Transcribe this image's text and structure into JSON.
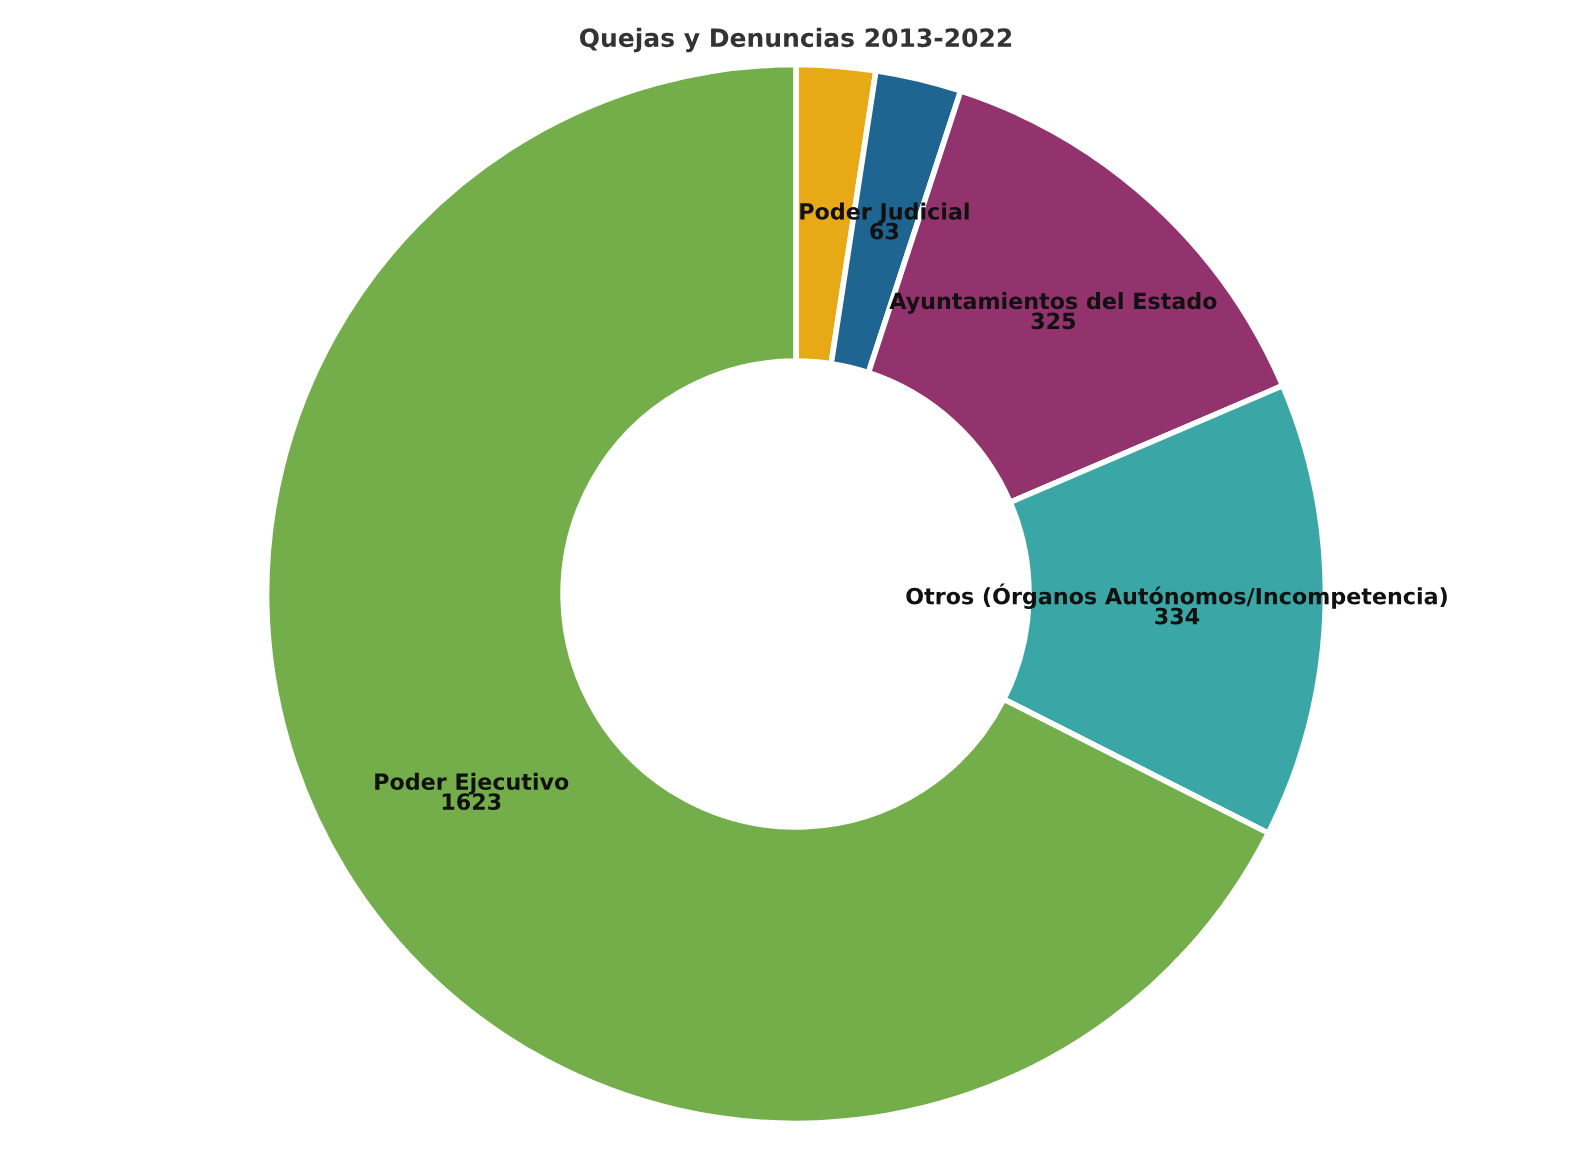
{
  "chart_data": {
    "type": "donut",
    "title": "Quejas y Denuncias 2013-2022",
    "categories": [
      null,
      "Poder Judicial",
      "Ayuntamientos del Estado",
      "Otros (Órganos Autónomos/Incompetencia)",
      "Poder Ejecutivo"
    ],
    "values": [
      58,
      63,
      325,
      334,
      1623
    ],
    "value_labels": [
      null,
      "63",
      "325",
      "334",
      "1623"
    ],
    "colors": [
      "#e8a917",
      "#1f6591",
      "#93336e",
      "#3aa7a6",
      "#74ae4a"
    ],
    "legend": false
  }
}
